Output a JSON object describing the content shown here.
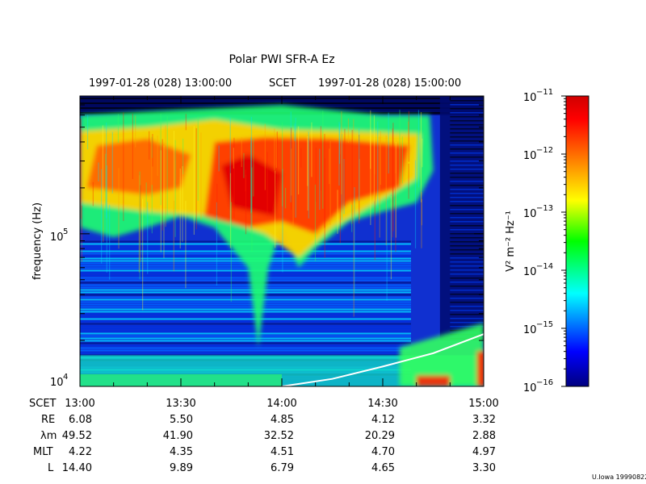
{
  "chart_data": {
    "type": "heatmap",
    "title": "Polar PWI SFR-A Ez",
    "top_time_start": "1997-01-28 (028) 13:00:00",
    "top_time_mid": "SCET",
    "top_time_end": "1997-01-28 (028) 15:00:00",
    "ylabel": "frequency (Hz)",
    "y_scale": "log",
    "ylim": [
      10000,
      800000
    ],
    "y_ticks": [
      {
        "base": "10",
        "exp": "4",
        "value": 10000
      },
      {
        "base": "10",
        "exp": "5",
        "value": 100000
      }
    ],
    "x_scale": "time",
    "xlim": [
      "13:00",
      "15:00"
    ],
    "colorbar": {
      "label": "V² m⁻² Hz⁻¹",
      "scale": "log",
      "range": [
        1e-16,
        1e-11
      ],
      "ticks": [
        {
          "base": "10",
          "exp": "−11",
          "value": 1e-11
        },
        {
          "base": "10",
          "exp": "−12",
          "value": 1e-12
        },
        {
          "base": "10",
          "exp": "−13",
          "value": 1e-13
        },
        {
          "base": "10",
          "exp": "−14",
          "value": 1e-14
        },
        {
          "base": "10",
          "exp": "−15",
          "value": 1e-15
        },
        {
          "base": "10",
          "exp": "−16",
          "value": 1e-16
        }
      ],
      "colors": [
        "#00007f",
        "#0000ff",
        "#00ffff",
        "#00ff00",
        "#ffff00",
        "#ff7f00",
        "#ff0000",
        "#d00000"
      ]
    },
    "ephemeris": {
      "row_labels": [
        "SCET",
        "RE",
        "λm",
        "MLT",
        "L"
      ],
      "columns": [
        {
          "scet": "13:00",
          "re": "6.08",
          "lambda": "49.52",
          "mlt": "4.22",
          "l": "14.40"
        },
        {
          "scet": "13:30",
          "re": "5.50",
          "lambda": "41.90",
          "mlt": "4.35",
          "l": "9.89"
        },
        {
          "scet": "14:00",
          "re": "4.85",
          "lambda": "32.52",
          "mlt": "4.51",
          "l": "6.79"
        },
        {
          "scet": "14:30",
          "re": "4.12",
          "lambda": "20.29",
          "mlt": "4.70",
          "l": "4.65"
        },
        {
          "scet": "15:00",
          "re": "3.32",
          "lambda": "2.88",
          "mlt": "4.97",
          "l": "3.30"
        }
      ]
    },
    "overlay_line": {
      "description": "white curve",
      "color": "#ffffff",
      "points": [
        [
          "14:00",
          10000
        ],
        [
          "14:15",
          11200
        ],
        [
          "14:30",
          13500
        ],
        [
          "14:45",
          16500
        ],
        [
          "15:00",
          22000
        ]
      ]
    },
    "intensity_regions": [
      {
        "t0": "13:00",
        "t1": "14:45",
        "f0": 130000,
        "f1": 500000,
        "level": "high"
      },
      {
        "t0": "13:40",
        "t1": "14:05",
        "f0": 90000,
        "f1": 450000,
        "level": "peak"
      },
      {
        "t0": "13:00",
        "t1": "15:00",
        "f0": 10000,
        "f1": 90000,
        "level": "low"
      }
    ]
  },
  "footer": {
    "credit": "U.Iowa 19990822"
  }
}
